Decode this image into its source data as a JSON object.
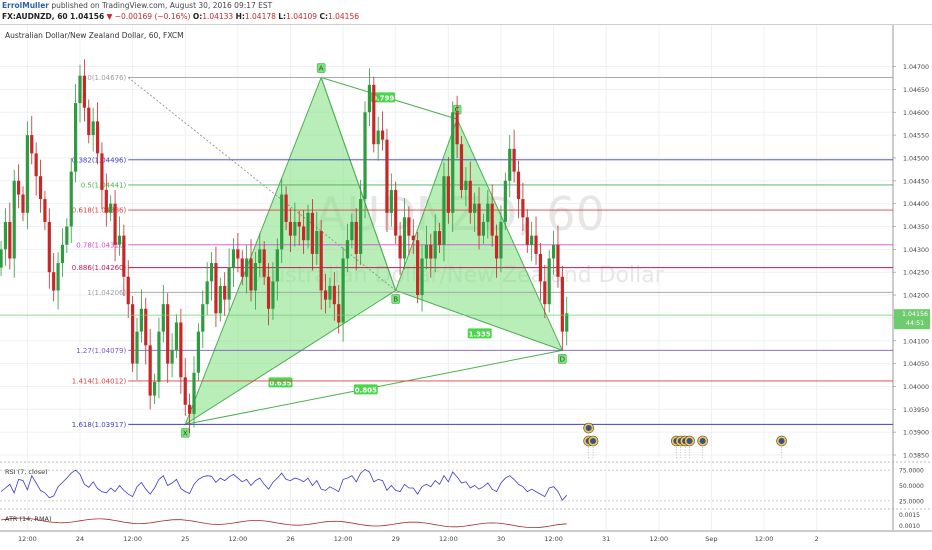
{
  "header": {
    "user": "ErrolMuller",
    "published": "published on TradingView.com, August 30, 2016 09:17 EST",
    "symbol": "FX:AUDNZD, 60",
    "last": "1.04156",
    "arrow": "▼",
    "change": "−0.00169 (−0.16%)",
    "ohlc": [
      {
        "label": "O:",
        "value": "1.04133"
      },
      {
        "label": "H:",
        "value": "1.04178"
      },
      {
        "label": "L:",
        "value": "1.04109"
      },
      {
        "label": "C:",
        "value": "1.04156"
      }
    ]
  },
  "chart_data": {
    "type": "candlestick",
    "title": "Australian Dollar/New Zealand Dollar, 60, FXCM",
    "watermark_symbol": "AUDNZD, 60",
    "watermark_name": "Australian Dollar/New Zealand Dollar",
    "ylim": [
      1.0385,
      1.0478
    ],
    "y_ticks": [
      "1.04700",
      "1.04650",
      "1.04600",
      "1.04550",
      "1.04500",
      "1.04450",
      "1.04400",
      "1.04350",
      "1.04300",
      "1.04250",
      "1.04200",
      "1.04150",
      "1.04100",
      "1.04050",
      "1.04000",
      "1.03950",
      "1.03900",
      "1.03850"
    ],
    "x_ticks": [
      {
        "label": "12:00",
        "i": -12
      },
      {
        "label": "24",
        "i": 0
      },
      {
        "label": "12:00",
        "i": 12
      },
      {
        "label": "25",
        "i": 24
      },
      {
        "label": "12:00",
        "i": 36
      },
      {
        "label": "26",
        "i": 48
      },
      {
        "label": "12:00",
        "i": 60
      },
      {
        "label": "29",
        "i": 72
      },
      {
        "label": "12:00",
        "i": 84
      },
      {
        "label": "30",
        "i": 96
      },
      {
        "label": "12:00",
        "i": 108
      },
      {
        "label": "31",
        "i": 120
      },
      {
        "label": "12:00",
        "i": 132
      },
      {
        "label": "Sep",
        "i": 144
      },
      {
        "label": "12:00",
        "i": 156
      },
      {
        "label": "2",
        "i": 168
      }
    ],
    "current_price": "1.04156",
    "countdown": "44:51",
    "closes": [
      1.043,
      1.0436,
      1.0428,
      1.0445,
      1.0442,
      1.0438,
      1.0455,
      1.0451,
      1.0446,
      1.0441,
      1.0436,
      1.0425,
      1.0421,
      1.0427,
      1.0431,
      1.0435,
      1.0447,
      1.0462,
      1.0468,
      1.0461,
      1.0455,
      1.0458,
      1.0451,
      1.0443,
      1.0438,
      1.044,
      1.0431,
      1.0433,
      1.0424,
      1.0418,
      1.0405,
      1.0412,
      1.0417,
      1.0409,
      1.0398,
      1.0401,
      1.0412,
      1.0418,
      1.0405,
      1.0408,
      1.0414,
      1.0402,
      1.0396,
      1.0394,
      1.0403,
      1.0412,
      1.0418,
      1.0423,
      1.0427,
      1.0416,
      1.0422,
      1.0419,
      1.0426,
      1.043,
      1.0428,
      1.0424,
      1.0428,
      1.0421,
      1.0427,
      1.043,
      1.0424,
      1.0417,
      1.0423,
      1.043,
      1.0442,
      1.0436,
      1.0433,
      1.0436,
      1.0435,
      1.0432,
      1.0438,
      1.0429,
      1.0434,
      1.0421,
      1.0419,
      1.0422,
      1.0418,
      1.0414,
      1.0428,
      1.0432,
      1.0436,
      1.0429,
      1.0441,
      1.046,
      1.0466,
      1.0453,
      1.0456,
      1.0454,
      1.0438,
      1.0443,
      1.0433,
      1.0428,
      1.0437,
      1.0433,
      1.0432,
      1.042,
      1.0428,
      1.0431,
      1.0428,
      1.0434,
      1.0431,
      1.0446,
      1.0438,
      1.046,
      1.0453,
      1.0443,
      1.0445,
      1.0438,
      1.044,
      1.0433,
      1.0436,
      1.044,
      1.0433,
      1.0428,
      1.0436,
      1.0445,
      1.0452,
      1.0447,
      1.0441,
      1.0437,
      1.0431,
      1.0433,
      1.0429,
      1.0423,
      1.0418,
      1.0428,
      1.0431,
      1.0424,
      1.0412,
      1.0416
    ],
    "harmonic": {
      "points": [
        {
          "label": "X",
          "i": 24,
          "y": 1.03917
        },
        {
          "label": "A",
          "i": 55,
          "y": 1.04676
        },
        {
          "label": "B",
          "i": 72,
          "y": 1.0421
        },
        {
          "label": "C",
          "i": 86,
          "y": 1.04585
        },
        {
          "label": "D",
          "i": 110,
          "y": 1.04079
        }
      ],
      "ratios": [
        {
          "label": "0.799",
          "between": "XB-A"
        },
        {
          "label": "1.335",
          "between": "B-D"
        },
        {
          "label": "0.635",
          "between": "X-B"
        },
        {
          "label": "0.805",
          "between": "X-D"
        }
      ]
    },
    "fib_levels": [
      {
        "label": "0(1.04676)",
        "y": 1.04676,
        "color": "#9e9e9e"
      },
      {
        "label": "0.382(1.04496)",
        "y": 1.04496,
        "color": "#3f3fc0"
      },
      {
        "label": "0.5(1.04441)",
        "y": 1.04441,
        "color": "#4caf50"
      },
      {
        "label": "0.618(1.04386)",
        "y": 1.04386,
        "color": "#d84040"
      },
      {
        "label": "0.78(1.04310)",
        "y": 1.0431,
        "color": "#d24bd2"
      },
      {
        "label": "0.886(1.04260)",
        "y": 1.0426,
        "color": "#c2185b"
      },
      {
        "label": "1(1.04206)",
        "y": 1.04206,
        "color": "#9e9e9e"
      },
      {
        "label": "1.27(1.04079)",
        "y": 1.04079,
        "color": "#7e57c2"
      },
      {
        "label": "1.414(1.04012)",
        "y": 1.04012,
        "color": "#d84040"
      },
      {
        "label": "1.618(1.03917)",
        "y": 1.03917,
        "color": "#3f3fc0"
      }
    ],
    "event_icons": [
      {
        "i": 116,
        "row": 0
      },
      {
        "i": 116,
        "row": 1
      },
      {
        "i": 117,
        "row": 1
      },
      {
        "i": 136,
        "row": 1
      },
      {
        "i": 137,
        "row": 1
      },
      {
        "i": 138,
        "row": 1
      },
      {
        "i": 139,
        "row": 1
      },
      {
        "i": 142,
        "row": 1
      },
      {
        "i": 160,
        "row": 1
      }
    ],
    "rsi": {
      "label": "RSI (7, close)",
      "ylim": [
        15,
        85
      ],
      "ticks": [
        "75.0000",
        "50.0000",
        "25.0000"
      ],
      "values": [
        40,
        46,
        52,
        38,
        60,
        58,
        43,
        66,
        54,
        42,
        38,
        30,
        33,
        48,
        55,
        62,
        70,
        75,
        68,
        52,
        47,
        56,
        45,
        40,
        38,
        46,
        40,
        50,
        42,
        36,
        32,
        48,
        55,
        44,
        36,
        46,
        60,
        66,
        50,
        54,
        60,
        45,
        40,
        37,
        52,
        60,
        64,
        66,
        65,
        55,
        62,
        58,
        64,
        68,
        62,
        56,
        60,
        50,
        58,
        62,
        52,
        44,
        55,
        62,
        70,
        60,
        58,
        62,
        60,
        56,
        62,
        50,
        58,
        44,
        42,
        48,
        44,
        40,
        60,
        62,
        66,
        56,
        70,
        76,
        72,
        56,
        60,
        58,
        42,
        50,
        42,
        40,
        52,
        46,
        46,
        36,
        48,
        52,
        48,
        58,
        52,
        66,
        56,
        72,
        64,
        54,
        56,
        46,
        50,
        44,
        48,
        54,
        44,
        40,
        54,
        62,
        66,
        60,
        52,
        48,
        40,
        44,
        40,
        36,
        32,
        46,
        48,
        40,
        26,
        34
      ]
    },
    "atr": {
      "label": "ATR (14, RMA)",
      "ticks": [
        "0.0015",
        "0.0010"
      ],
      "values_text": "ATR line drifting slowly downward"
    },
    "colors": {
      "up": "#2e9b3f",
      "down": "#c62828",
      "pattern_fill": "#7fe07f",
      "pattern_stroke": "#4caf50",
      "rsi_line": "#3a3ad0",
      "atr_line": "#a52a2a",
      "current_price_tag": "#6ecb6e"
    }
  }
}
